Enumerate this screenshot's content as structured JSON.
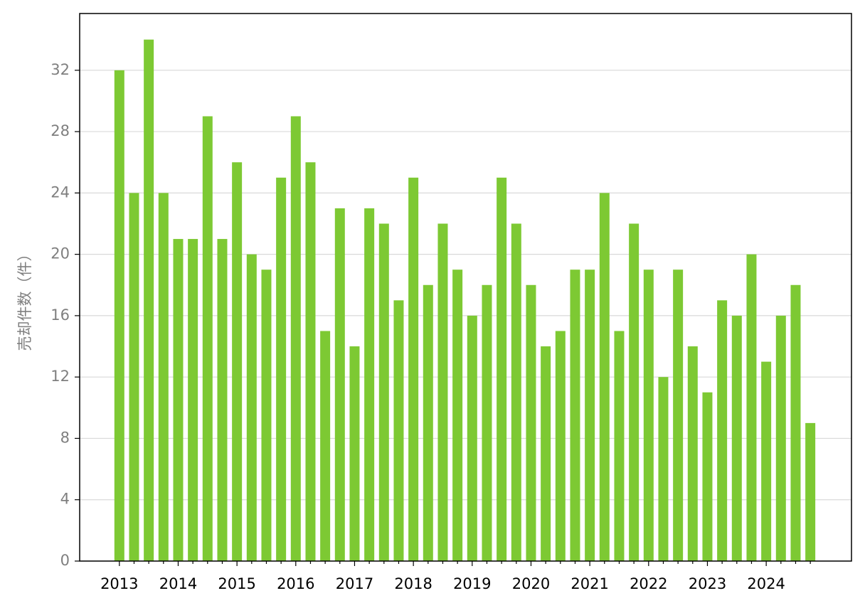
{
  "chart_data": {
    "type": "bar",
    "y_label": "売却件数（件）",
    "categories": [
      "2013",
      null,
      null,
      null,
      "2014",
      null,
      null,
      null,
      "2015",
      null,
      null,
      null,
      "2016",
      null,
      null,
      null,
      "2017",
      null,
      null,
      null,
      "2018",
      null,
      null,
      null,
      "2019",
      null,
      null,
      null,
      "2020",
      null,
      null,
      null,
      "2021",
      null,
      null,
      null,
      "2022",
      null,
      null,
      null,
      "2023",
      null,
      null,
      null,
      "2024",
      null,
      null,
      null
    ],
    "values": [
      32,
      24,
      34,
      24,
      21,
      21,
      29,
      21,
      26,
      20,
      19,
      25,
      29,
      26,
      15,
      23,
      14,
      23,
      22,
      17,
      25,
      18,
      22,
      19,
      16,
      18,
      25,
      22,
      18,
      14,
      15,
      19,
      19,
      24,
      15,
      22,
      19,
      12,
      19,
      14,
      11,
      17,
      16,
      20,
      13,
      16,
      18,
      9
    ],
    "color": "#7dc933",
    "ylim": [
      0,
      35.7
    ],
    "yticks": [
      0,
      4,
      8,
      12,
      16,
      20,
      24,
      28,
      32
    ],
    "grid": true
  }
}
